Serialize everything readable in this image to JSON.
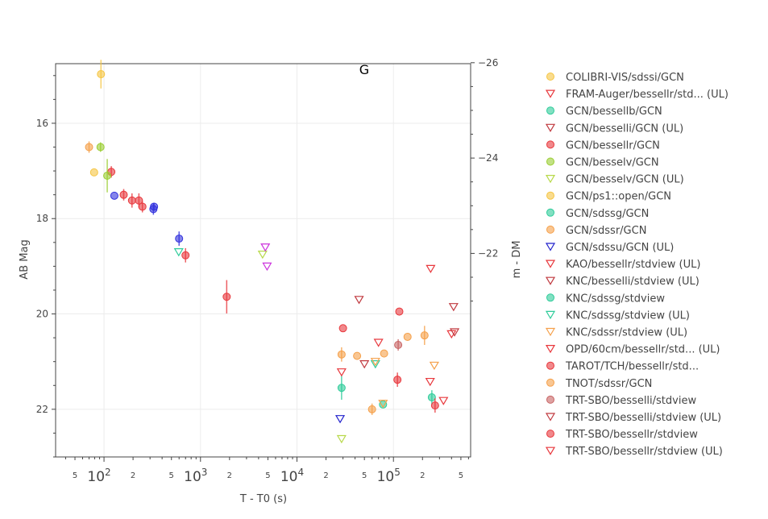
{
  "chart_data": {
    "type": "scatter",
    "title": "G",
    "xlabel": "T - T0 (s)",
    "ylabel": "AB Mag",
    "y2label": "m - DM",
    "x_scale": "log",
    "xlim": [
      31.5,
      630957
    ],
    "ylim": [
      23.0,
      14.75
    ],
    "y2_offset": -40.73,
    "y2_ticks": [
      -28,
      -26,
      -24,
      -22
    ],
    "y_ticks": [
      16,
      18,
      20,
      22
    ],
    "x_major_ticks": [
      100,
      1000,
      10000,
      100000
    ],
    "x_major_labels": [
      "10^2",
      "10^3",
      "10^4",
      "10^5"
    ],
    "x_minor_ticks": [
      50,
      200,
      500,
      2000,
      5000,
      20000,
      50000,
      200000,
      500000
    ],
    "x_minor_labels": [
      "5",
      "2",
      "5",
      "2",
      "5",
      "2",
      "5",
      "2",
      "5"
    ],
    "grid": true,
    "legend_position": "right",
    "series": [
      {
        "name": "COLIBRI-VIS/sdssi/GCN",
        "color": "#f5c542",
        "marker": "circle",
        "points": [
          [
            93,
            14.97,
            0.3
          ]
        ]
      },
      {
        "name": "FRAM-Auger/bessellr/std... (UL)",
        "color": "#e8383d",
        "marker": "triangle-down",
        "points": []
      },
      {
        "name": "GCN/bessellb/GCN",
        "color": "#2ecc9a",
        "marker": "circle",
        "points": []
      },
      {
        "name": "GCN/besselli/GCN (UL)",
        "color": "#c0393f",
        "marker": "triangle-down",
        "points": []
      },
      {
        "name": "GCN/bessellr/GCN",
        "color": "#e8383d",
        "marker": "circle",
        "points": [
          [
            119,
            17.02,
            0.12
          ],
          [
            160,
            17.5,
            0.12
          ],
          [
            195,
            17.62,
            0.15
          ],
          [
            230,
            17.62,
            0.15
          ],
          [
            250,
            17.75,
            0.12
          ],
          [
            700,
            18.77,
            0.15
          ],
          [
            1870,
            19.64,
            0.35
          ]
        ]
      },
      {
        "name": "GCN/besselv/GCN",
        "color": "#9acd32",
        "marker": "circle",
        "points": [
          [
            92,
            16.5,
            0.1
          ],
          [
            108,
            17.1,
            0.35
          ]
        ]
      },
      {
        "name": "GCN/besselv/GCN (UL)",
        "color": "#b8d94a",
        "marker": "triangle-down",
        "points": [
          [
            4400,
            18.75,
            0
          ],
          [
            29000,
            22.62,
            0
          ]
        ]
      },
      {
        "name": "GCN/ps1::open/GCN",
        "color": "#f5c542",
        "marker": "circle",
        "points": [
          [
            79,
            17.03,
            0
          ]
        ]
      },
      {
        "name": "GCN/sdssg/GCN",
        "color": "#2ecc9a",
        "marker": "circle",
        "points": [
          [
            29000,
            21.55,
            0.25
          ],
          [
            78000,
            21.9,
            0
          ],
          [
            250000,
            21.75,
            0.15
          ]
        ]
      },
      {
        "name": "GCN/sdssr/GCN",
        "color": "#f5a04a",
        "marker": "circle",
        "points": [
          [
            70,
            16.5,
            0.12
          ],
          [
            29000,
            20.85,
            0.15
          ],
          [
            42000,
            20.88,
            0
          ],
          [
            60000,
            22.0,
            0.12
          ],
          [
            80000,
            20.83,
            0
          ],
          [
            140000,
            20.48,
            0
          ],
          [
            210000,
            20.45,
            0.2
          ]
        ]
      },
      {
        "name": "GCN/sdssu/GCN (UL)",
        "color": "#2222cc",
        "marker": "triangle-down",
        "points": [
          [
            28000,
            22.2,
            0
          ]
        ]
      },
      {
        "name": "KAO/bessellr/stdview (UL)",
        "color": "#e8383d",
        "marker": "triangle-down",
        "points": [
          [
            243000,
            19.05,
            0
          ]
        ]
      },
      {
        "name": "KNC/besselli/stdview (UL)",
        "color": "#c0393f",
        "marker": "triangle-down",
        "points": [
          [
            44000,
            19.7,
            0
          ],
          [
            50000,
            21.05,
            0
          ]
        ]
      },
      {
        "name": "KNC/sdssg/stdview",
        "color": "#2ecc9a",
        "marker": "circle",
        "points": []
      },
      {
        "name": "KNC/sdssg/stdview (UL)",
        "color": "#2ecc9a",
        "marker": "triangle-down",
        "points": [
          [
            595,
            18.7,
            0
          ],
          [
            65000,
            21.05,
            0
          ]
        ]
      },
      {
        "name": "KNC/sdssr/stdview (UL)",
        "color": "#f5a04a",
        "marker": "triangle-down",
        "points": [
          [
            65000,
            21.0,
            0
          ],
          [
            78000,
            21.88,
            0
          ],
          [
            265000,
            21.08,
            0
          ]
        ]
      },
      {
        "name": "OPD/60cm/bessellr/std... (UL)",
        "color": "#e8383d",
        "marker": "triangle-down",
        "points": [
          [
            29000,
            21.22,
            0
          ],
          [
            70000,
            20.6,
            0
          ],
          [
            240000,
            21.42,
            0
          ],
          [
            330000,
            21.82,
            0
          ],
          [
            400000,
            20.42,
            0
          ]
        ]
      },
      {
        "name": "TAROT/TCH/bessellr/std...",
        "color": "#e8383d",
        "marker": "circle",
        "points": [
          [
            30000,
            20.3,
            0
          ],
          [
            115000,
            19.95,
            0
          ],
          [
            110000,
            21.38,
            0.15
          ],
          [
            270000,
            21.92,
            0.15
          ]
        ]
      },
      {
        "name": "TNOT/sdssr/GCN",
        "color": "#f5a04a",
        "marker": "circle",
        "points": []
      },
      {
        "name": "TRT-SBO/besselli/stdview",
        "color": "#c86464",
        "marker": "circle",
        "points": [
          [
            112000,
            20.65,
            0.12
          ]
        ]
      },
      {
        "name": "TRT-SBO/besselli/stdview (UL)",
        "color": "#c0393f",
        "marker": "triangle-down",
        "points": [
          [
            420000,
            19.85,
            0
          ],
          [
            430000,
            20.38,
            0
          ]
        ]
      },
      {
        "name": "TRT-SBO/bessellr/stdview",
        "color": "#e8383d",
        "marker": "circle",
        "points": []
      },
      {
        "name": "TRT-SBO/bessellr/stdview (UL)",
        "color": "#e8383d",
        "marker": "triangle-down",
        "points": []
      },
      {
        "name": "",
        "color": "#3333dd",
        "marker": "circle",
        "points": [
          [
            128,
            17.52,
            0
          ],
          [
            325,
            17.8,
            0.12
          ],
          [
            330,
            17.75,
            0.08
          ],
          [
            600,
            18.42,
            0.15
          ]
        ]
      },
      {
        "name": "",
        "color": "#cc33dd",
        "marker": "triangle-down",
        "points": [
          [
            4700,
            18.6,
            0
          ],
          [
            4900,
            19.0,
            0
          ]
        ]
      }
    ]
  }
}
